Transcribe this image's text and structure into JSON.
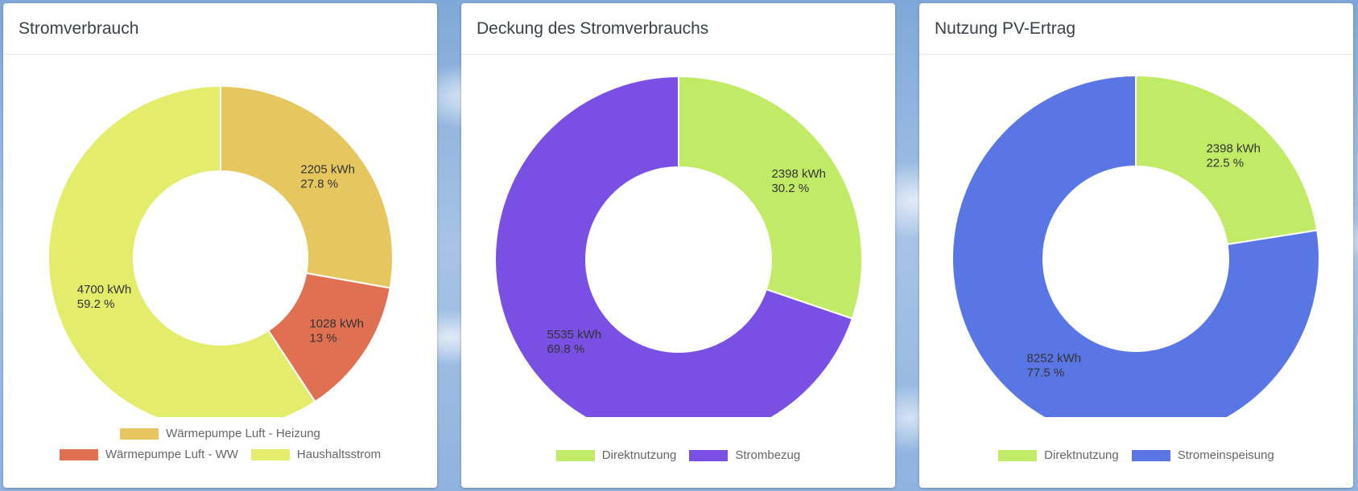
{
  "chart_data": [
    {
      "type": "pie",
      "title": "Stromverbrauch",
      "categories": [
        "Wärmepumpe Luft - Heizung",
        "Wärmepumpe Luft - WW",
        "Haushaltsstrom"
      ],
      "values": [
        2205,
        1028,
        4700
      ],
      "value_labels": [
        "2205 kWh",
        "1028 kWh",
        "4700 kWh"
      ],
      "percent_labels": [
        "27.8 %",
        "13 %",
        "59.2 %"
      ],
      "colors": [
        "#e6c75f",
        "#e07052",
        "#e3ec6b"
      ],
      "legend_rows": [
        [
          0
        ],
        [
          1,
          2
        ]
      ],
      "legend_position": "bottom"
    },
    {
      "type": "pie",
      "title": "Deckung des Stromverbrauchs",
      "categories": [
        "Direktnutzung",
        "Strombezug"
      ],
      "values": [
        2398,
        5535
      ],
      "value_labels": [
        "2398 kWh",
        "5535 kWh"
      ],
      "percent_labels": [
        "30.2 %",
        "69.8 %"
      ],
      "colors": [
        "#c1ea66",
        "#7a4fe3"
      ],
      "legend_rows": [
        [
          0,
          1
        ]
      ],
      "legend_position": "bottom"
    },
    {
      "type": "pie",
      "title": "Nutzung PV-Ertrag",
      "categories": [
        "Direktnutzung",
        "Stromeinspeisung"
      ],
      "values": [
        2398,
        8252
      ],
      "value_labels": [
        "2398 kWh",
        "8252 kWh"
      ],
      "percent_labels": [
        "22.5 %",
        "77.5 %"
      ],
      "colors": [
        "#c1ea66",
        "#5a76e4"
      ],
      "legend_rows": [
        [
          0,
          1
        ]
      ],
      "legend_position": "bottom"
    }
  ]
}
